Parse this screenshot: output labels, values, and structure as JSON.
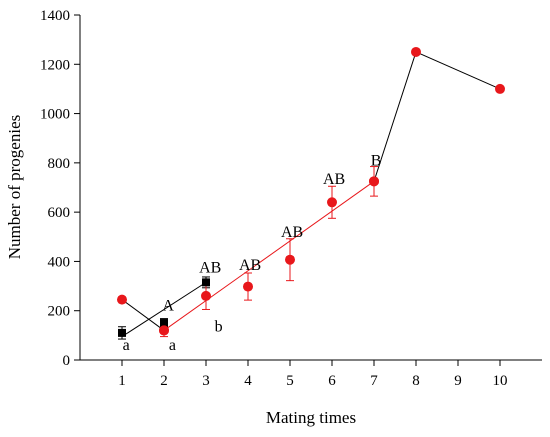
{
  "chart_data": {
    "type": "scatter",
    "xlabel": "Mating times",
    "ylabel": "Number of progenies",
    "xlim": [
      0,
      11
    ],
    "ylim": [
      0,
      1400
    ],
    "xticks": [
      1,
      2,
      3,
      4,
      5,
      6,
      7,
      8,
      9,
      10
    ],
    "yticks": [
      0,
      200,
      400,
      600,
      800,
      1000,
      1200,
      1400
    ],
    "grid": false,
    "series": [
      {
        "color": "#000000",
        "marker": "square",
        "x": [
          1,
          2,
          3
        ],
        "y": [
          110,
          150,
          315
        ],
        "err": [
          25,
          18,
          22
        ],
        "fit": [
          [
            1,
            95
          ],
          [
            3,
            315
          ]
        ]
      },
      {
        "color": "#e8171b",
        "marker": "circle",
        "x": [
          2,
          3,
          4,
          5,
          6,
          7
        ],
        "y": [
          120,
          260,
          298,
          407,
          640,
          725
        ],
        "err": [
          25,
          55,
          55,
          85,
          65,
          60
        ],
        "fit": [
          [
            2,
            120
          ],
          [
            7,
            725
          ]
        ]
      },
      {
        "color": "#e8171b",
        "marker": "circle",
        "x": [
          1,
          2
        ],
        "y": [
          245,
          120
        ],
        "line_color": "#000000"
      },
      {
        "color": "#e8171b",
        "marker": "circle",
        "x": [
          7,
          8,
          10
        ],
        "y": [
          725,
          1250,
          1100
        ],
        "line_color": "#000000"
      }
    ],
    "annotations": [
      {
        "text": "a",
        "x": 1.1,
        "y": 40
      },
      {
        "text": "a",
        "x": 2.2,
        "y": 40
      },
      {
        "text": "A",
        "x": 2.1,
        "y": 200
      },
      {
        "text": "AB",
        "x": 3.1,
        "y": 355
      },
      {
        "text": "b",
        "x": 3.3,
        "y": 115
      },
      {
        "text": "AB",
        "x": 4.05,
        "y": 365
      },
      {
        "text": "AB",
        "x": 5.05,
        "y": 500
      },
      {
        "text": "AB",
        "x": 6.05,
        "y": 715
      },
      {
        "text": "B",
        "x": 7.05,
        "y": 790
      }
    ]
  }
}
